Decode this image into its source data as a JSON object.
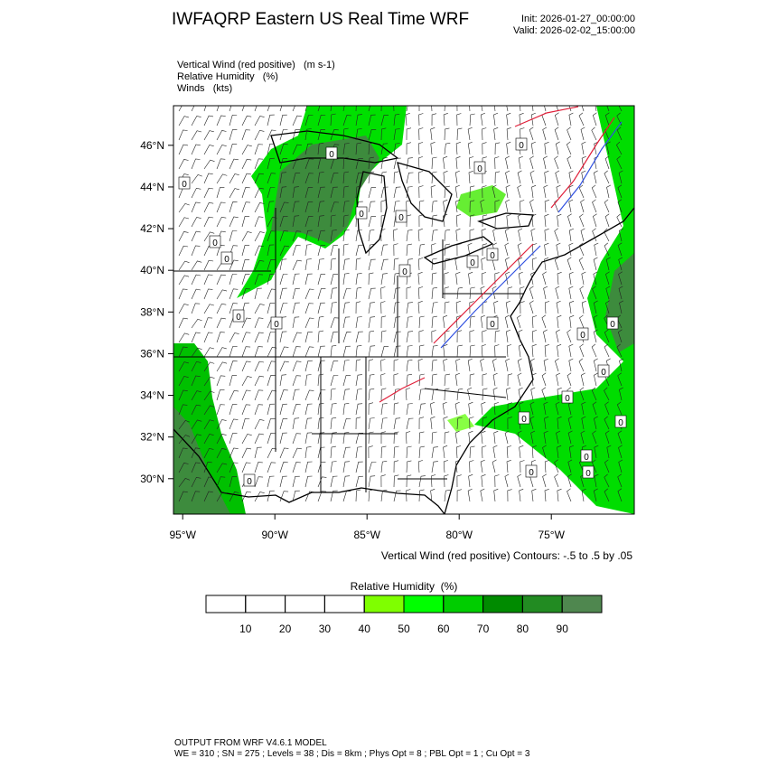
{
  "header": {
    "title": "IWFAQRP Eastern US Real Time WRF",
    "init": "Init: 2026-01-27_00:00:00",
    "valid": "Valid: 2026-02-02_15:00:00"
  },
  "fields": [
    "Vertical Wind (red positive)   (m s-1)",
    "Relative Humidity   (%)",
    "Winds   (kts)"
  ],
  "map": {
    "lon_range": [
      -95.5,
      -70.5
    ],
    "lat_range": [
      28.3,
      47.9
    ],
    "lat_ticks": [
      {
        "value": 46,
        "label": "46°N"
      },
      {
        "value": 44,
        "label": "44°N"
      },
      {
        "value": 42,
        "label": "42°N"
      },
      {
        "value": 40,
        "label": "40°N"
      },
      {
        "value": 38,
        "label": "38°N"
      },
      {
        "value": 36,
        "label": "36°N"
      },
      {
        "value": 34,
        "label": "34°N"
      },
      {
        "value": 32,
        "label": "32°N"
      },
      {
        "value": 30,
        "label": "30°N"
      }
    ],
    "lon_ticks": [
      {
        "value": -95,
        "label": "95°W"
      },
      {
        "value": -90,
        "label": "90°W"
      },
      {
        "value": -85,
        "label": "85°W"
      },
      {
        "value": -80,
        "label": "80°W"
      },
      {
        "value": -75,
        "label": "75°W"
      }
    ],
    "contour_note": "Vertical Wind (red positive) Contours: -.5 to .5 by .05",
    "contour_labels": [
      "0",
      "0",
      "0",
      "0",
      "0",
      "0",
      "0",
      "0",
      "0",
      "0",
      "0",
      "0",
      "0",
      "0",
      "0",
      "0",
      "0",
      "0",
      "0",
      "0",
      "0",
      "0",
      "0",
      "0"
    ]
  },
  "colorbar": {
    "title": "Relative Humidity  (%)",
    "range": [
      0,
      100
    ],
    "ticks": [
      10,
      20,
      30,
      40,
      50,
      60,
      70,
      80,
      90
    ],
    "colors": [
      "#ffffff",
      "#ffffff",
      "#ffffff",
      "#ffffff",
      "#7fff00",
      "#00ff00",
      "#00cd00",
      "#008b00",
      "#228b22",
      "#4f874f"
    ]
  },
  "footer": [
    "OUTPUT FROM WRF V4.6.1 MODEL",
    "WE = 310 ; SN = 275 ; Levels = 38 ; Dis = 8km ; Phys Opt = 8 ; PBL Opt = 1 ; Cu Opt = 3"
  ]
}
